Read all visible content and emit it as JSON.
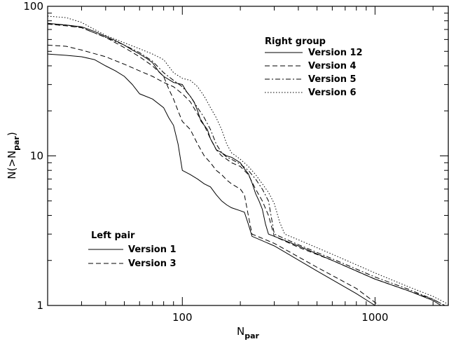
{
  "chart_data": {
    "type": "line",
    "xlabel": "N",
    "xlabel_sub": "par",
    "ylabel": "N(>N",
    "ylabel_sub": "par",
    "ylabel_close": ")",
    "xscale": "log",
    "yscale": "log",
    "xlim": [
      20,
      2400
    ],
    "ylim": [
      1,
      100
    ],
    "x_ticks": [
      {
        "value": 100,
        "label": "100"
      },
      {
        "value": 1000,
        "label": "1000"
      }
    ],
    "y_ticks": [
      {
        "value": 1,
        "label": "1"
      },
      {
        "value": 10,
        "label": "10"
      },
      {
        "value": 100,
        "label": "100"
      }
    ],
    "grid": false,
    "legends": [
      {
        "title": "Right group",
        "placement": "top-right",
        "entries": [
          {
            "label": "Version 12",
            "dash": "solid"
          },
          {
            "label": "Version 4",
            "dash": "dashed"
          },
          {
            "label": "Version 5",
            "dash": "dashdot"
          },
          {
            "label": "Version 6",
            "dash": "dotted"
          }
        ]
      },
      {
        "title": "Left pair",
        "placement": "bottom-left",
        "entries": [
          {
            "label": "Version 1",
            "dash": "solid"
          },
          {
            "label": "Version 3",
            "dash": "dashed"
          }
        ]
      }
    ],
    "series": [
      {
        "name": "Version 12",
        "dash": "solid",
        "points": [
          [
            20,
            77
          ],
          [
            25,
            75
          ],
          [
            30,
            73
          ],
          [
            35,
            68
          ],
          [
            40,
            63
          ],
          [
            45,
            59
          ],
          [
            50,
            55
          ],
          [
            55,
            51
          ],
          [
            60,
            48
          ],
          [
            65,
            45
          ],
          [
            70,
            42
          ],
          [
            75,
            37
          ],
          [
            80,
            34
          ],
          [
            90,
            31
          ],
          [
            100,
            30
          ],
          [
            105,
            27
          ],
          [
            110,
            25
          ],
          [
            115,
            23
          ],
          [
            120,
            20
          ],
          [
            125,
            17
          ],
          [
            130,
            16
          ],
          [
            135,
            15
          ],
          [
            140,
            13
          ],
          [
            145,
            12
          ],
          [
            150,
            11
          ],
          [
            160,
            10.5
          ],
          [
            170,
            10
          ],
          [
            180,
            9.8
          ],
          [
            200,
            9
          ],
          [
            210,
            8.2
          ],
          [
            220,
            7.6
          ],
          [
            230,
            6.6
          ],
          [
            240,
            5.6
          ],
          [
            250,
            5.0
          ],
          [
            260,
            4.4
          ],
          [
            270,
            3.5
          ],
          [
            280,
            3.0
          ],
          [
            300,
            2.9
          ],
          [
            400,
            2.5
          ],
          [
            600,
            2.0
          ],
          [
            1000,
            1.5
          ],
          [
            1500,
            1.25
          ],
          [
            2000,
            1.08
          ],
          [
            2200,
            1.0
          ]
        ]
      },
      {
        "name": "Version 4",
        "dash": "dashed",
        "points": [
          [
            20,
            55
          ],
          [
            25,
            54
          ],
          [
            30,
            51
          ],
          [
            40,
            46
          ],
          [
            50,
            41
          ],
          [
            60,
            37
          ],
          [
            70,
            34
          ],
          [
            80,
            31
          ],
          [
            90,
            29
          ],
          [
            100,
            26
          ],
          [
            110,
            23
          ],
          [
            120,
            19
          ],
          [
            130,
            16
          ],
          [
            140,
            13
          ],
          [
            150,
            11
          ],
          [
            160,
            10
          ],
          [
            170,
            9.5
          ],
          [
            180,
            9.0
          ],
          [
            200,
            8.5
          ],
          [
            220,
            7.5
          ],
          [
            240,
            6.0
          ],
          [
            260,
            5.0
          ],
          [
            280,
            4.0
          ],
          [
            300,
            2.9
          ],
          [
            400,
            2.45
          ],
          [
            600,
            2.0
          ],
          [
            1000,
            1.5
          ],
          [
            1500,
            1.25
          ],
          [
            2000,
            1.1
          ],
          [
            2300,
            1.0
          ]
        ]
      },
      {
        "name": "Version 5",
        "dash": "dashdot",
        "points": [
          [
            20,
            76
          ],
          [
            25,
            75
          ],
          [
            30,
            72
          ],
          [
            40,
            62
          ],
          [
            50,
            55
          ],
          [
            60,
            49
          ],
          [
            70,
            43
          ],
          [
            80,
            36
          ],
          [
            90,
            32
          ],
          [
            100,
            29
          ],
          [
            110,
            25
          ],
          [
            120,
            21
          ],
          [
            130,
            18
          ],
          [
            140,
            15
          ],
          [
            150,
            12
          ],
          [
            160,
            10.5
          ],
          [
            170,
            9.8
          ],
          [
            180,
            9.5
          ],
          [
            200,
            8.8
          ],
          [
            220,
            8.0
          ],
          [
            240,
            7.0
          ],
          [
            260,
            6.0
          ],
          [
            280,
            5.0
          ],
          [
            300,
            3.0
          ],
          [
            400,
            2.55
          ],
          [
            600,
            2.05
          ],
          [
            1000,
            1.55
          ],
          [
            1500,
            1.28
          ],
          [
            2000,
            1.1
          ],
          [
            2300,
            1.0
          ]
        ]
      },
      {
        "name": "Version 6",
        "dash": "dotted",
        "points": [
          [
            20,
            86
          ],
          [
            25,
            84
          ],
          [
            30,
            78
          ],
          [
            35,
            70
          ],
          [
            40,
            64
          ],
          [
            50,
            57
          ],
          [
            60,
            52
          ],
          [
            70,
            48
          ],
          [
            80,
            44
          ],
          [
            90,
            36
          ],
          [
            100,
            33
          ],
          [
            110,
            32
          ],
          [
            120,
            29
          ],
          [
            130,
            25
          ],
          [
            140,
            21
          ],
          [
            150,
            18
          ],
          [
            160,
            15
          ],
          [
            170,
            12
          ],
          [
            180,
            10.5
          ],
          [
            200,
            9.5
          ],
          [
            220,
            8.5
          ],
          [
            240,
            7.5
          ],
          [
            260,
            6.5
          ],
          [
            280,
            5.7
          ],
          [
            300,
            4.8
          ],
          [
            320,
            3.6
          ],
          [
            340,
            3.0
          ],
          [
            400,
            2.75
          ],
          [
            600,
            2.2
          ],
          [
            1000,
            1.65
          ],
          [
            1500,
            1.33
          ],
          [
            2000,
            1.15
          ],
          [
            2400,
            1.02
          ]
        ]
      },
      {
        "name": "Version 1",
        "dash": "solid",
        "points": [
          [
            20,
            48
          ],
          [
            25,
            47
          ],
          [
            30,
            46
          ],
          [
            35,
            44
          ],
          [
            40,
            40
          ],
          [
            45,
            37
          ],
          [
            50,
            34
          ],
          [
            55,
            30
          ],
          [
            60,
            26
          ],
          [
            70,
            24
          ],
          [
            80,
            21
          ],
          [
            85,
            18
          ],
          [
            90,
            16
          ],
          [
            95,
            12
          ],
          [
            100,
            8
          ],
          [
            110,
            7.5
          ],
          [
            120,
            7.0
          ],
          [
            130,
            6.5
          ],
          [
            140,
            6.2
          ],
          [
            150,
            5.5
          ],
          [
            160,
            5.0
          ],
          [
            170,
            4.7
          ],
          [
            180,
            4.5
          ],
          [
            200,
            4.3
          ],
          [
            210,
            4.2
          ],
          [
            220,
            3.5
          ],
          [
            230,
            2.9
          ],
          [
            300,
            2.5
          ],
          [
            500,
            1.7
          ],
          [
            800,
            1.2
          ],
          [
            1000,
            1.0
          ]
        ]
      },
      {
        "name": "Version 3",
        "dash": "dashed",
        "points": [
          [
            20,
            76
          ],
          [
            25,
            74
          ],
          [
            30,
            72
          ],
          [
            40,
            62
          ],
          [
            50,
            53
          ],
          [
            60,
            46
          ],
          [
            70,
            40
          ],
          [
            80,
            34
          ],
          [
            85,
            28
          ],
          [
            90,
            24
          ],
          [
            95,
            20
          ],
          [
            100,
            17
          ],
          [
            110,
            15
          ],
          [
            120,
            12
          ],
          [
            130,
            10
          ],
          [
            140,
            9
          ],
          [
            150,
            8
          ],
          [
            160,
            7.5
          ],
          [
            170,
            6.9
          ],
          [
            180,
            6.5
          ],
          [
            200,
            6.0
          ],
          [
            210,
            5.5
          ],
          [
            220,
            4.0
          ],
          [
            230,
            3.0
          ],
          [
            300,
            2.6
          ],
          [
            500,
            1.8
          ],
          [
            800,
            1.3
          ],
          [
            1050,
            1.0
          ]
        ]
      }
    ]
  }
}
